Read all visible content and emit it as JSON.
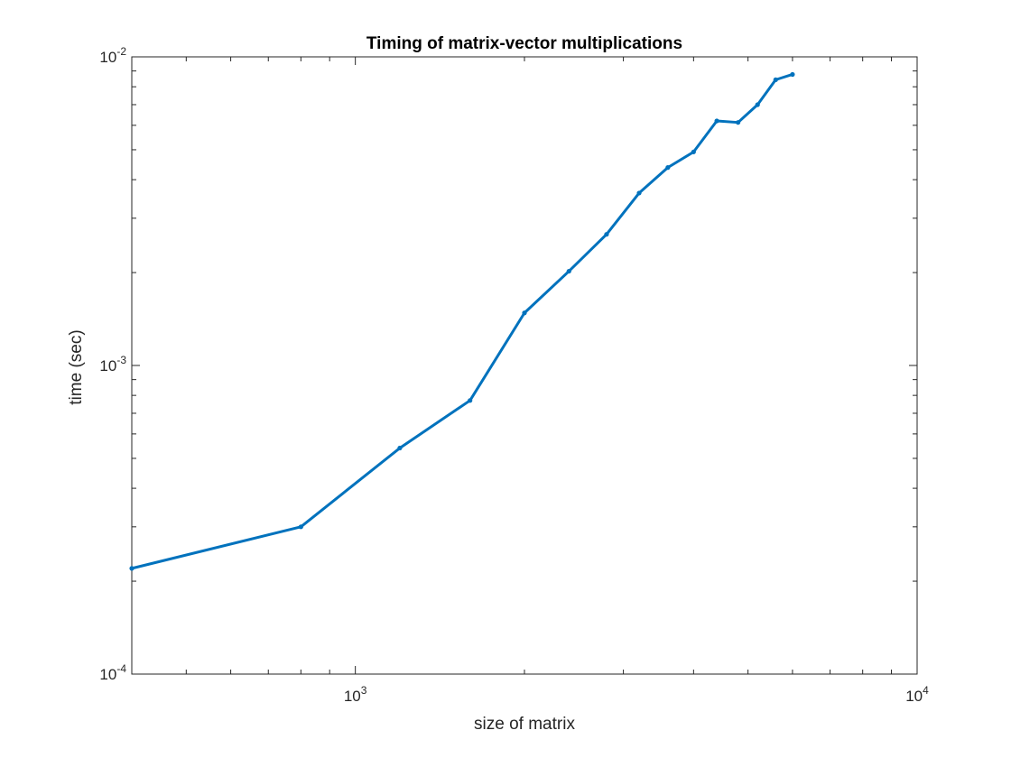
{
  "chart_data": {
    "type": "line",
    "title": "Timing of matrix-vector multiplications",
    "xlabel": "size of matrix",
    "ylabel": "time (sec)",
    "xscale": "log",
    "yscale": "log",
    "xlim": [
      400,
      10000
    ],
    "ylim": [
      0.0001,
      0.01
    ],
    "grid": false,
    "box": true,
    "x_ticks": [
      {
        "value": 1000,
        "base": "10",
        "exp": "3"
      },
      {
        "value": 10000,
        "base": "10",
        "exp": "4"
      }
    ],
    "y_ticks": [
      {
        "value": 0.0001,
        "base": "10",
        "exp": "-4"
      },
      {
        "value": 0.001,
        "base": "10",
        "exp": "-3"
      },
      {
        "value": 0.01,
        "base": "10",
        "exp": "-2"
      }
    ],
    "series": [
      {
        "color": "#0072BD",
        "marker": "point",
        "x": [
          400,
          800,
          1200,
          1600,
          2000,
          2400,
          2800,
          3200,
          3600,
          4000,
          4400,
          4800,
          5200,
          5600,
          6000
        ],
        "y": [
          0.00022,
          0.0003,
          0.00054,
          0.00077,
          0.00148,
          0.00202,
          0.00266,
          0.00362,
          0.00438,
          0.00492,
          0.0062,
          0.00613,
          0.007,
          0.00843,
          0.00877
        ]
      }
    ]
  }
}
